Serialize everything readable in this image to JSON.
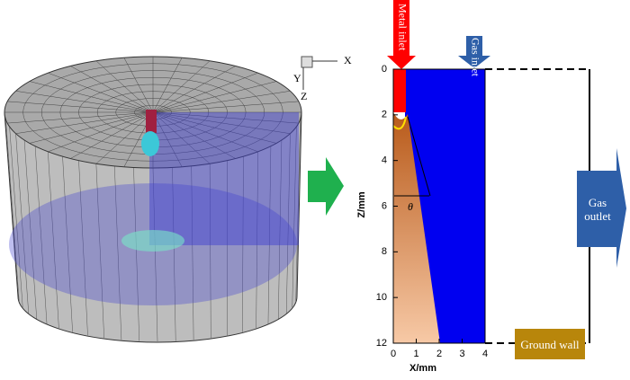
{
  "left": {
    "axes": [
      "X",
      "Y",
      "Z"
    ]
  },
  "right": {
    "x_label": "X/mm",
    "z_label": "Z/mm",
    "xticks": [
      0,
      1,
      2,
      3,
      4
    ],
    "zticks": [
      0,
      2,
      4,
      6,
      8,
      10,
      12
    ],
    "metal_inlet": "Metal inlet",
    "gas_inlet": "Gas inlet",
    "gas_outlet": "Gas outlet",
    "ground_wall": "Ground wall",
    "angle": "θ"
  }
}
